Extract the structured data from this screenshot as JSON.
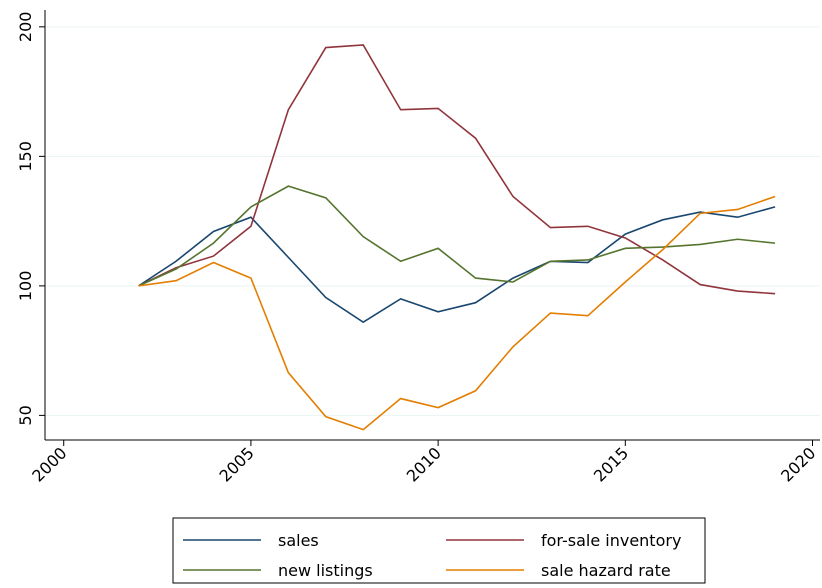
{
  "chart_data": {
    "type": "line",
    "x": [
      2002,
      2003,
      2004,
      2005,
      2006,
      2007,
      2008,
      2009,
      2010,
      2011,
      2012,
      2013,
      2014,
      2015,
      2016,
      2017,
      2018,
      2019
    ],
    "series": [
      {
        "name": "sales",
        "color": "#1a476f",
        "values": [
          100,
          109.5,
          121,
          126.5,
          111,
          95.5,
          86,
          95,
          90,
          93.5,
          103,
          109.5,
          109,
          120,
          125.5,
          128.5,
          126.5,
          130.5
        ]
      },
      {
        "name": "for-sale inventory",
        "color": "#90353b",
        "values": [
          100,
          107,
          111.5,
          123,
          168,
          192,
          193,
          168,
          168.5,
          157,
          134.5,
          122.5,
          123,
          118.5,
          110,
          100.5,
          98,
          97
        ]
      },
      {
        "name": "new listings",
        "color": "#55752f",
        "values": [
          100,
          106.5,
          116.5,
          130.5,
          138.5,
          134,
          119,
          109.5,
          114.5,
          103,
          101.5,
          109.5,
          110,
          114.5,
          115,
          116,
          118,
          116.5
        ]
      },
      {
        "name": "sale hazard rate",
        "color": "#e37e00",
        "values": [
          100,
          102,
          109,
          103,
          66.5,
          49.5,
          44.5,
          56.5,
          53,
          59.5,
          76.5,
          89.5,
          88.5,
          101.5,
          114,
          128,
          129.5,
          134.5
        ]
      }
    ],
    "xlim": [
      1999.5,
      2020.2
    ],
    "xticks": [
      2000,
      2005,
      2010,
      2015,
      2020
    ],
    "ylim": [
      40.5,
      206.5
    ],
    "yticks": [
      50,
      100,
      150,
      200
    ],
    "grid": true,
    "legend": "bottom"
  }
}
